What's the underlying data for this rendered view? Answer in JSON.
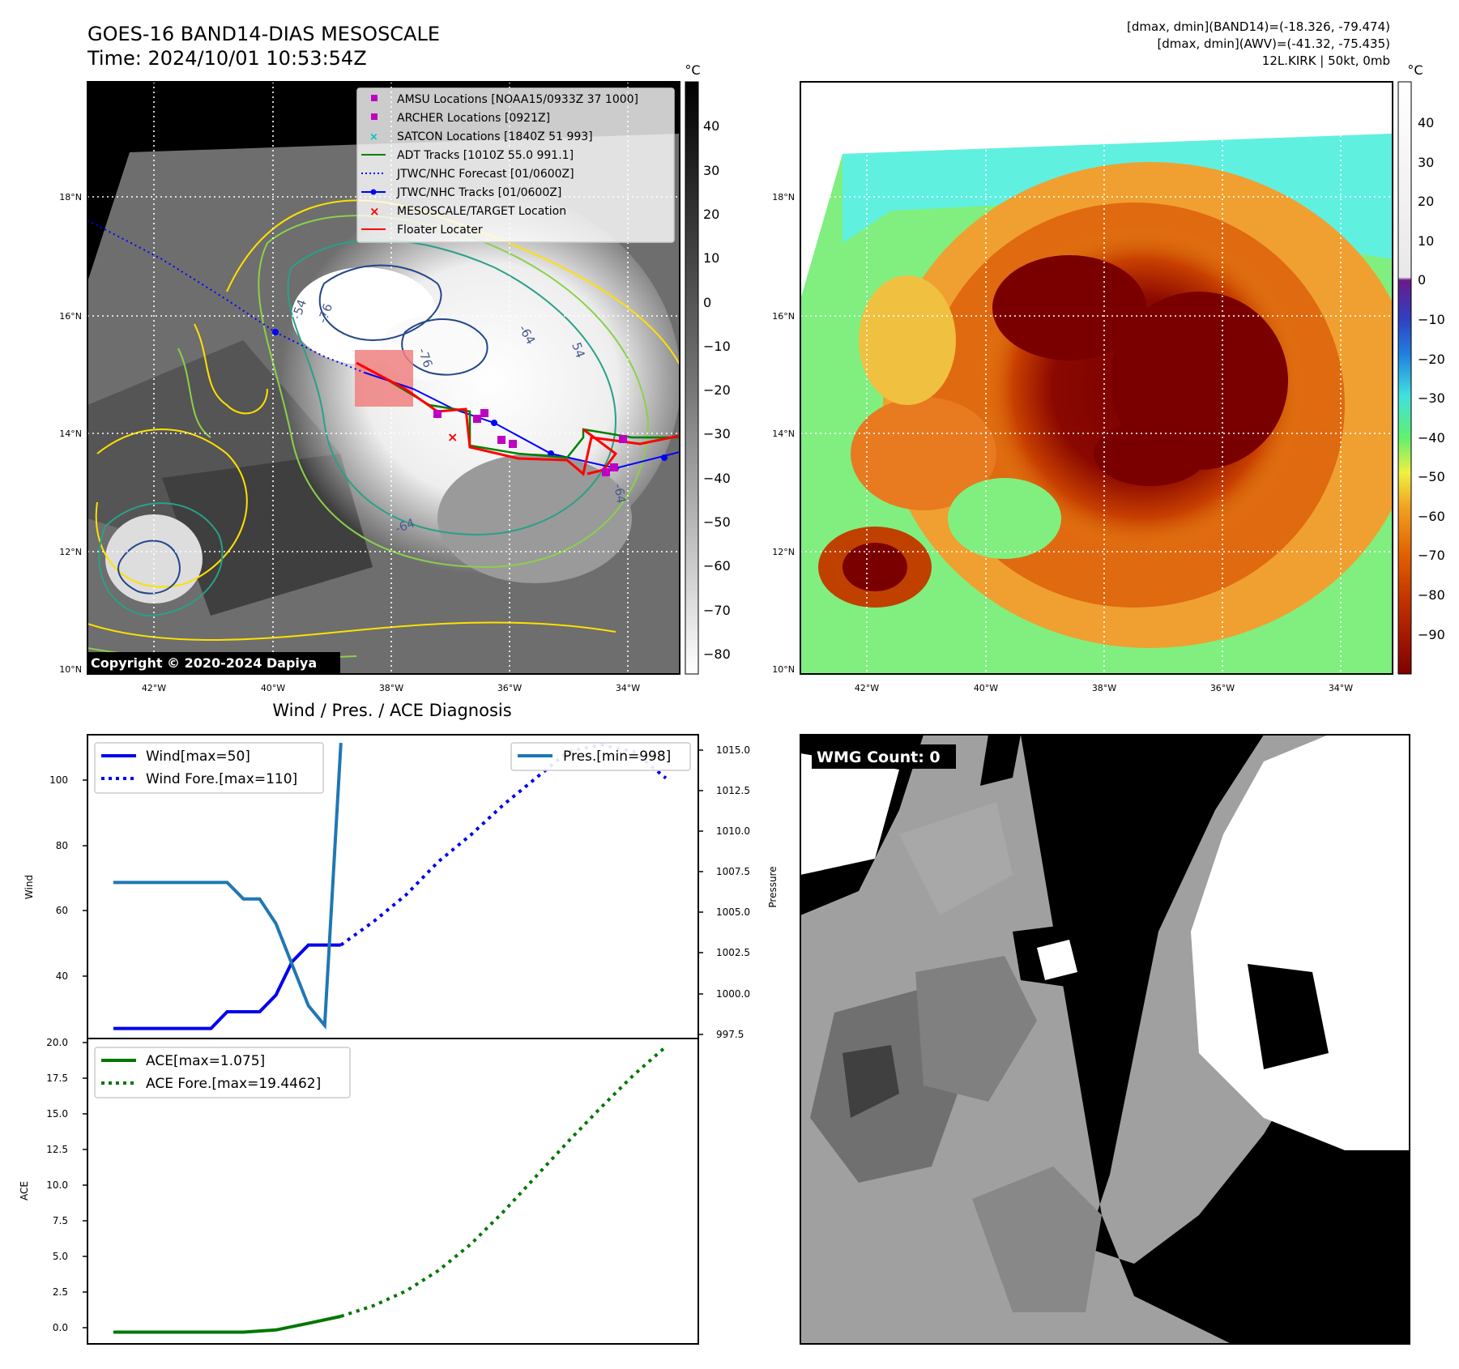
{
  "header": {
    "title_line1": "GOES-16 BAND14-DIAS MESOSCALE",
    "title_line2": "Time: 2024/10/01 10:53:54Z",
    "stats_line1": "[dmax, dmin](BAND14)=(-18.326, -79.474)",
    "stats_line2": "[dmax, dmin](AWV)=(-41.32, -75.435)",
    "stats_line3": "12L.KIRK | 50kt, 0mb"
  },
  "map_axes": {
    "lon_ticks": [
      "42°W",
      "40°W",
      "38°W",
      "36°W",
      "34°W"
    ],
    "lat_ticks": [
      "18°N",
      "16°N",
      "14°N",
      "12°N",
      "10°N"
    ]
  },
  "ir_panel": {
    "colorbar_unit": "°C",
    "colorbar_ticks": [
      "40",
      "30",
      "20",
      "10",
      "0",
      "−10",
      "−20",
      "−30",
      "−40",
      "−50",
      "−60",
      "−70",
      "−80"
    ],
    "copyright": "Copyright © 2020-2024 Dapiya",
    "contour_labels": [
      "-76",
      "-76",
      "-54",
      "-64",
      "54",
      "-64",
      "-64"
    ],
    "legend": [
      {
        "label": "AMSU Locations [NOAA15/0933Z 37 1000]",
        "color": "#c000c0",
        "marker": "square"
      },
      {
        "label": "ARCHER Locations [0921Z]",
        "color": "#c000c0",
        "marker": "square"
      },
      {
        "label": "SATCON Locations [1840Z 51 993]",
        "color": "#00c0c0",
        "marker": "x"
      },
      {
        "label": "ADT Tracks [1010Z 55.0 991.1]",
        "color": "#008000",
        "marker": "line"
      },
      {
        "label": "JTWC/NHC Forecast [01/0600Z]",
        "color": "#0000ff",
        "marker": "dotted"
      },
      {
        "label": "JTWC/NHC Tracks [01/0600Z]",
        "color": "#0000ff",
        "marker": "line-dot"
      },
      {
        "label": "MESOSCALE/TARGET Location",
        "color": "#ff0000",
        "marker": "x"
      },
      {
        "label": "Floater Locater",
        "color": "#ff0000",
        "marker": "line"
      }
    ]
  },
  "dias_panel": {
    "colorbar_unit": "°C",
    "colorbar_ticks": [
      "40",
      "30",
      "20",
      "10",
      "0",
      "−10",
      "−20",
      "−30",
      "−40",
      "−50",
      "−60",
      "−70",
      "−80",
      "−90"
    ]
  },
  "wmg_panel": {
    "label": "WMG Count: 0"
  },
  "colors": {
    "wind": "#0000ee",
    "pressure": "#1f77b4",
    "ace": "#007700"
  },
  "chart_data": [
    {
      "type": "line",
      "title": "Wind / Pres. / ACE Diagnosis",
      "ylabel": "Wind",
      "y2label": "Pressure",
      "ylim": [
        22,
        113
      ],
      "y2lim": [
        997,
        1015.5
      ],
      "yticks": [
        "40",
        "60",
        "80",
        "100"
      ],
      "y2ticks": [
        "997.5",
        "1000.0",
        "1002.5",
        "1005.0",
        "1007.5",
        "1010.0",
        "1012.5",
        "1015.0"
      ],
      "legend_left": [
        "Wind[max=50]",
        "Wind Fore.[max=110]"
      ],
      "legend_right": [
        "Pres.[min=998]"
      ],
      "series": [
        {
          "name": "Wind[max=50]",
          "style": "solid",
          "x": [
            0,
            1,
            2,
            3,
            4,
            5,
            6,
            7,
            8,
            9,
            10,
            11,
            12,
            13,
            14
          ],
          "values": [
            25,
            25,
            25,
            25,
            25,
            25,
            25,
            30,
            30,
            30,
            35,
            45,
            50,
            50,
            50
          ]
        },
        {
          "name": "Wind Fore.[max=110]",
          "style": "dotted",
          "x": [
            14,
            16,
            18,
            20,
            22,
            24,
            26,
            28,
            30,
            32,
            34
          ],
          "values": [
            50,
            57,
            65,
            75,
            83,
            92,
            100,
            108,
            110,
            108,
            100
          ]
        },
        {
          "name": "Pres.[min=998]",
          "style": "solid",
          "axis": "right",
          "x": [
            0,
            1,
            2,
            3,
            4,
            5,
            6,
            7,
            8,
            9,
            10,
            11,
            12,
            13,
            14
          ],
          "values": [
            1006.5,
            1006.5,
            1006.5,
            1006.5,
            1006.5,
            1006.5,
            1006.5,
            1006.5,
            1005.5,
            1005.5,
            1004,
            1001.5,
            999,
            997.8,
            1015
          ]
        }
      ]
    },
    {
      "type": "line",
      "ylabel": "ACE",
      "ylim": [
        -0.8,
        20
      ],
      "yticks": [
        "0.0",
        "2.5",
        "5.0",
        "7.5",
        "10.0",
        "12.5",
        "15.0",
        "17.5",
        "20.0"
      ],
      "legend": [
        "ACE[max=1.075]",
        "ACE Fore.[max=19.4462]"
      ],
      "series": [
        {
          "name": "ACE[max=1.075]",
          "style": "solid",
          "x": [
            0,
            2,
            4,
            6,
            8,
            10,
            12,
            14
          ],
          "values": [
            0,
            0,
            0,
            0,
            0,
            0.15,
            0.6,
            1.075
          ]
        },
        {
          "name": "ACE Fore.[max=19.4462]",
          "style": "dotted",
          "x": [
            14,
            16,
            18,
            20,
            22,
            24,
            26,
            28,
            30,
            32,
            34
          ],
          "values": [
            1.075,
            1.8,
            2.8,
            4.2,
            6.0,
            8.2,
            10.6,
            13.0,
            15.3,
            17.5,
            19.4462
          ]
        }
      ]
    }
  ]
}
